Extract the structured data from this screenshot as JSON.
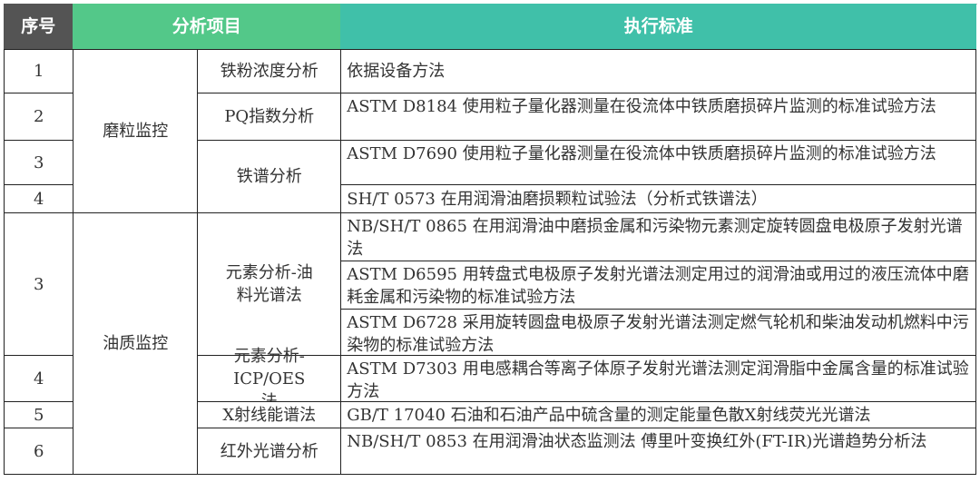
{
  "colors": {
    "header_serial": "#545454",
    "header_item": "#53c889",
    "header_standard": "#40c0a9"
  },
  "header": {
    "serial": "序号",
    "item": "分析项目",
    "standard": "执行标准"
  },
  "groups": [
    "磨粒监控",
    "油质监控"
  ],
  "items": [
    "铁粉浓度分析",
    "PQ指数分析",
    "铁谱分析",
    "元素分析-油料光谱法",
    "元素分析-ICP/OES 法",
    "X射线能谱法",
    "红外光谱分析"
  ],
  "serials": [
    "1",
    "2",
    "3",
    "4",
    "3",
    "4",
    "5",
    "6"
  ],
  "standards": [
    "依据设备方法",
    "ASTM D8184 使用粒子量化器测量在役流体中铁质磨损碎片监测的标准试验方法",
    "ASTM D7690 使用粒子量化器测量在役流体中铁质磨损碎片监测的标准试验方法",
    "SH/T 0573 在用润滑油磨损颗粒试验法（分析式铁谱法）",
    "NB/SH/T 0865 在用润滑油中磨损金属和污染物元素测定旋转圆盘电极原子发射光谱法",
    "ASTM D6595 用转盘式电极原子发射光谱法测定用过的润滑油或用过的液压流体中磨耗金属和污染物的标准试验方法",
    "ASTM D6728 采用旋转圆盘电极原子发射光谱法测定燃气轮机和柴油发动机燃料中污染物的标准试验方法",
    "ASTM D7303 用电感耦合等离子体原子发射光谱法测定润滑脂中金属含量的标准试验方法",
    "GB/T 17040 石油和石油产品中硫含量的测定能量色散X射线荧光光谱法",
    "NB/SH/T 0853 在用润滑油状态监测法 傅里叶变换红外(FT-IR)光谱趋势分析法"
  ]
}
